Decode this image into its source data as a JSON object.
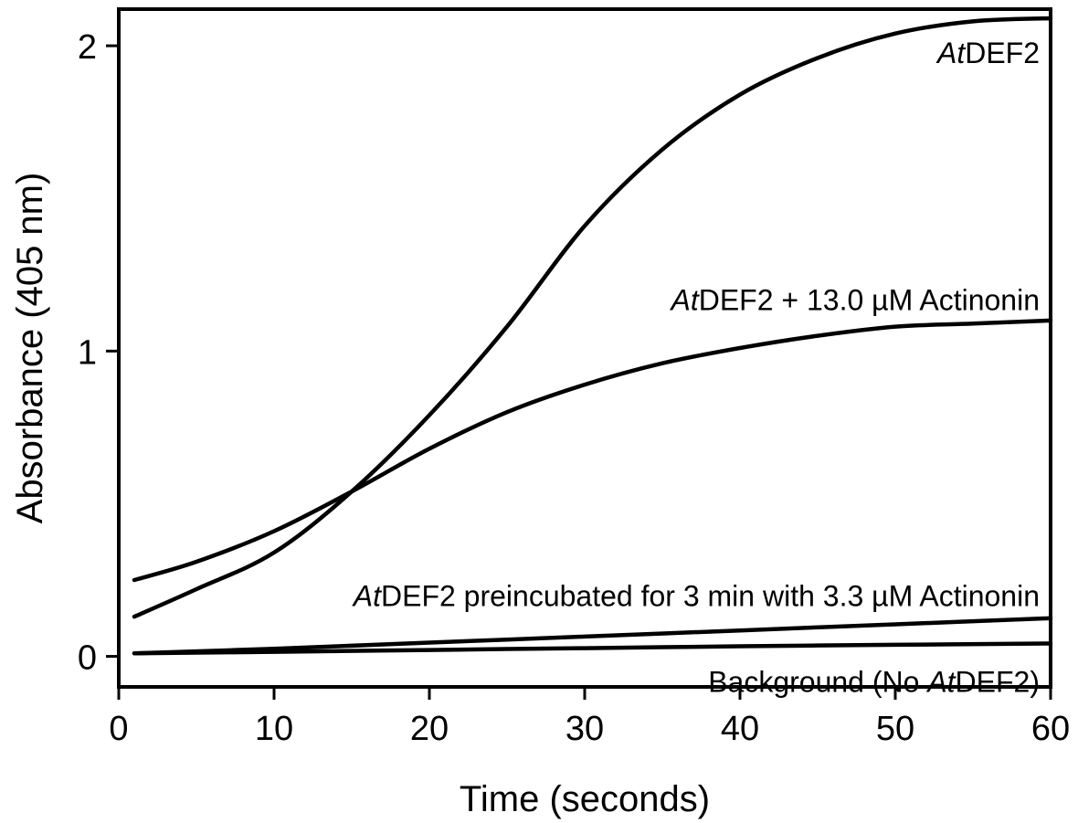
{
  "chart_data": {
    "type": "line",
    "xlabel": "Time (seconds)",
    "ylabel": "Absorbance (405 nm)",
    "xlim": [
      0,
      60
    ],
    "ylim": [
      -0.1,
      2.12
    ],
    "xticks": [
      0,
      10,
      20,
      30,
      40,
      50,
      60
    ],
    "yticks": [
      0,
      1,
      2
    ],
    "xtick_labels": [
      "0",
      "10",
      "20",
      "30",
      "40",
      "50",
      "60"
    ],
    "ytick_labels": [
      "0",
      "1",
      "2"
    ],
    "grid": false,
    "legend": "none",
    "series": [
      {
        "x": [
          1,
          5,
          10,
          15,
          20,
          25,
          30,
          35,
          40,
          45,
          50,
          55,
          60
        ],
        "values": [
          0.13,
          0.22,
          0.34,
          0.54,
          0.79,
          1.08,
          1.41,
          1.66,
          1.84,
          1.96,
          2.04,
          2.08,
          2.09
        ]
      },
      {
        "x": [
          1,
          5,
          10,
          15,
          20,
          25,
          30,
          35,
          40,
          45,
          50,
          55,
          60
        ],
        "values": [
          0.25,
          0.31,
          0.41,
          0.54,
          0.68,
          0.8,
          0.89,
          0.96,
          1.01,
          1.05,
          1.08,
          1.09,
          1.1
        ]
      },
      {
        "x": [
          1,
          10,
          20,
          30,
          40,
          50,
          60
        ],
        "values": [
          0.01,
          0.025,
          0.045,
          0.065,
          0.085,
          0.105,
          0.125
        ]
      },
      {
        "x": [
          1,
          10,
          20,
          30,
          40,
          50,
          60
        ],
        "values": [
          0.01,
          0.015,
          0.021,
          0.027,
          0.033,
          0.038,
          0.042
        ]
      }
    ],
    "annotations": {
      "atdef2": {
        "italic": "At",
        "rest": "DEF2",
        "x": 60,
        "y": 1.98
      },
      "actinonin": {
        "italic": "At",
        "rest": "DEF2 + 13.0 µM Actinonin",
        "x": 60,
        "y": 1.17
      },
      "preincubated": {
        "italic": "At",
        "rest": "DEF2 preincubated for 3 min with 3.3 µM Actinonin",
        "x": 60,
        "y": 0.2
      },
      "background": {
        "prefix": "Background (No ",
        "italic": "At",
        "suffix": "DEF2)",
        "x": 60,
        "y": -0.08
      }
    }
  }
}
